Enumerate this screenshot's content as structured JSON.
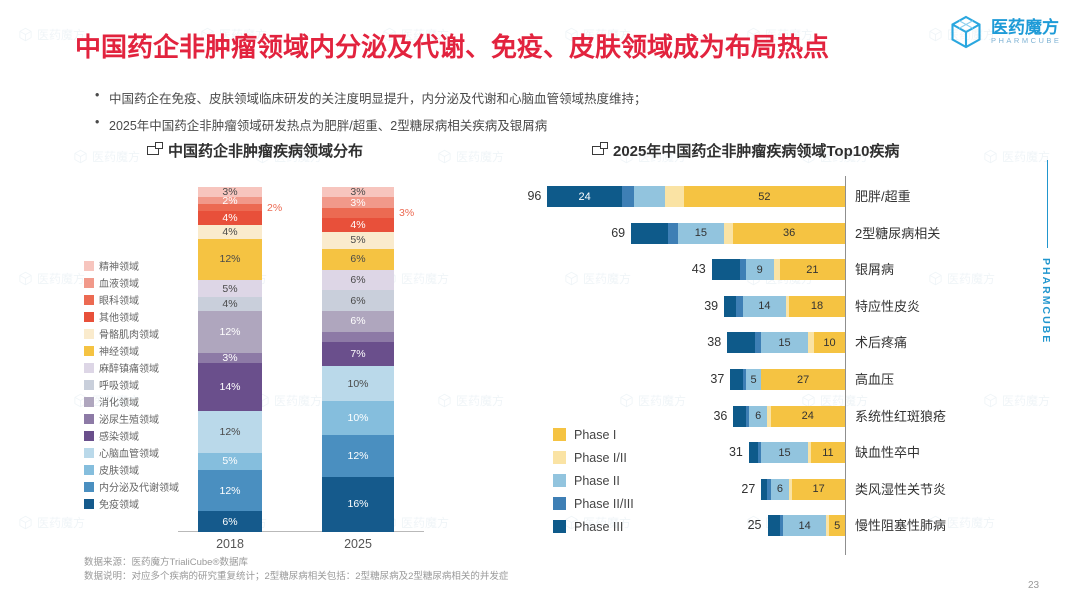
{
  "page": {
    "title": "中国药企非肿瘤领域内分泌及代谢、免疫、皮肤领域成为布局热点",
    "bullets": [
      "中国药企在免疫、皮肤领域临床研发的关注度明显提升，内分泌及代谢和心脑血管领域热度维持；",
      "2025年中国药企非肿瘤领域研发热点为肥胖/超重、2型糖尿病相关疾病及银屑病"
    ],
    "logo": {
      "name": "医药魔方",
      "subtitle": "PHARMCUBE"
    },
    "side_label": "PHARMCUBE",
    "watermark_text": "医药魔方",
    "footer": {
      "source": "数据来源：医药魔方TrialiCube®数据库",
      "note": "数据说明：对应多个疾病的研究重复统计；2型糖尿病相关包括：2型糖尿病及2型糖尿病相关的并发症"
    },
    "page_number": "23",
    "accent_color": "#E2233E"
  },
  "chart_data": [
    {
      "type": "bar",
      "variant": "stacked-column",
      "title": "中国药企非肿瘤疾病领域分布",
      "categories": [
        "2018",
        "2025"
      ],
      "value_unit": "%",
      "ylim": [
        0,
        100
      ],
      "series": [
        {
          "name": "精神领域",
          "color": "#F7C5BE",
          "values": [
            3,
            3
          ],
          "labels": [
            "3%",
            "3%"
          ]
        },
        {
          "name": "血液领域",
          "color": "#F1998A",
          "values": [
            2,
            3
          ],
          "labels": [
            "2%",
            "3%"
          ]
        },
        {
          "name": "眼科领域",
          "color": "#EC6A52",
          "values": [
            2,
            3
          ],
          "labels": [
            "2%",
            "3%"
          ],
          "callout": true
        },
        {
          "name": "其他领域",
          "color": "#E8503A",
          "values": [
            4,
            4
          ],
          "labels": [
            "4%",
            "4%"
          ]
        },
        {
          "name": "骨骼肌肉领域",
          "color": "#FAEBCD",
          "values": [
            4,
            5
          ],
          "labels": [
            "4%",
            "5%"
          ]
        },
        {
          "name": "神经领域",
          "color": "#F5C342",
          "values": [
            12,
            6
          ],
          "labels": [
            "12%",
            "6%"
          ]
        },
        {
          "name": "麻醉镇痛领域",
          "color": "#DDD6E6",
          "values": [
            5,
            6
          ],
          "labels": [
            "5%",
            "6%"
          ]
        },
        {
          "name": "呼吸领域",
          "color": "#C9CFDB",
          "values": [
            4,
            6
          ],
          "labels": [
            "4%",
            "6%"
          ]
        },
        {
          "name": "消化领域",
          "color": "#AFA6BE",
          "values": [
            12,
            6
          ],
          "labels": [
            "12%",
            "6%"
          ]
        },
        {
          "name": "泌尿生殖领域",
          "color": "#8D7AA6",
          "values": [
            3,
            3
          ],
          "labels": [
            "3%",
            ""
          ]
        },
        {
          "name": "感染领域",
          "color": "#6A4F8C",
          "values": [
            14,
            7
          ],
          "labels": [
            "14%",
            "7%"
          ]
        },
        {
          "name": "心脑血管领域",
          "color": "#BAD9EA",
          "values": [
            12,
            10
          ],
          "labels": [
            "12%",
            "10%"
          ]
        },
        {
          "name": "皮肤领域",
          "color": "#85BEDD",
          "values": [
            5,
            10
          ],
          "labels": [
            "5%",
            "10%"
          ]
        },
        {
          "name": "内分泌及代谢领域",
          "color": "#4A8FC0",
          "values": [
            12,
            12
          ],
          "labels": [
            "12%",
            "12%"
          ]
        },
        {
          "name": "免疫领域",
          "color": "#155A8C",
          "values": [
            6,
            16
          ],
          "labels": [
            "6%",
            "16%"
          ]
        }
      ]
    },
    {
      "type": "bar",
      "variant": "stacked-horizontal",
      "title": "2025年中国药企非肿瘤疾病领域Top10疾病",
      "legend_position": "bottom-left",
      "phases": [
        {
          "name": "Phase I",
          "color": "#F5C342"
        },
        {
          "name": "Phase I/II",
          "color": "#FAE3A4"
        },
        {
          "name": "Phase II",
          "color": "#92C4DE"
        },
        {
          "name": "Phase II/III",
          "color": "#3E7FB5"
        },
        {
          "name": "Phase III",
          "color": "#0E5A8A"
        }
      ],
      "rows": [
        {
          "disease": "肥胖/超重",
          "total": 96,
          "segments": [
            {
              "phase": "Phase III",
              "value": 24,
              "label": "24"
            },
            {
              "phase": "Phase II/III",
              "value": 4,
              "label": ""
            },
            {
              "phase": "Phase II",
              "value": 10,
              "label": ""
            },
            {
              "phase": "Phase I/II",
              "value": 6,
              "label": ""
            },
            {
              "phase": "Phase I",
              "value": 52,
              "label": "52"
            }
          ]
        },
        {
          "disease": "2型糖尿病相关",
          "total": 69,
          "segments": [
            {
              "phase": "Phase III",
              "value": 12,
              "label": ""
            },
            {
              "phase": "Phase II/III",
              "value": 3,
              "label": ""
            },
            {
              "phase": "Phase II",
              "value": 15,
              "label": "15"
            },
            {
              "phase": "Phase I/II",
              "value": 3,
              "label": ""
            },
            {
              "phase": "Phase I",
              "value": 36,
              "label": "36"
            }
          ]
        },
        {
          "disease": "银屑病",
          "total": 43,
          "segments": [
            {
              "phase": "Phase III",
              "value": 9,
              "label": ""
            },
            {
              "phase": "Phase II/III",
              "value": 2,
              "label": ""
            },
            {
              "phase": "Phase II",
              "value": 9,
              "label": "9"
            },
            {
              "phase": "Phase I/II",
              "value": 2,
              "label": ""
            },
            {
              "phase": "Phase I",
              "value": 21,
              "label": "21"
            }
          ]
        },
        {
          "disease": "特应性皮炎",
          "total": 39,
          "segments": [
            {
              "phase": "Phase III",
              "value": 4,
              "label": ""
            },
            {
              "phase": "Phase II/III",
              "value": 2,
              "label": ""
            },
            {
              "phase": "Phase II",
              "value": 14,
              "label": "14"
            },
            {
              "phase": "Phase I/II",
              "value": 1,
              "label": ""
            },
            {
              "phase": "Phase I",
              "value": 18,
              "label": "18"
            }
          ]
        },
        {
          "disease": "术后疼痛",
          "total": 38,
          "segments": [
            {
              "phase": "Phase III",
              "value": 9,
              "label": ""
            },
            {
              "phase": "Phase II/III",
              "value": 2,
              "label": ""
            },
            {
              "phase": "Phase II",
              "value": 15,
              "label": "15"
            },
            {
              "phase": "Phase I/II",
              "value": 2,
              "label": ""
            },
            {
              "phase": "Phase I",
              "value": 10,
              "label": "10"
            }
          ]
        },
        {
          "disease": "高血压",
          "total": 37,
          "segments": [
            {
              "phase": "Phase III",
              "value": 4,
              "label": ""
            },
            {
              "phase": "Phase II/III",
              "value": 1,
              "label": ""
            },
            {
              "phase": "Phase II",
              "value": 5,
              "label": "5"
            },
            {
              "phase": "Phase I/II",
              "value": 0,
              "label": ""
            },
            {
              "phase": "Phase I",
              "value": 27,
              "label": "27"
            }
          ]
        },
        {
          "disease": "系统性红斑狼疮",
          "total": 36,
          "segments": [
            {
              "phase": "Phase III",
              "value": 4,
              "label": ""
            },
            {
              "phase": "Phase II/III",
              "value": 1,
              "label": ""
            },
            {
              "phase": "Phase II",
              "value": 6,
              "label": "6"
            },
            {
              "phase": "Phase I/II",
              "value": 1,
              "label": ""
            },
            {
              "phase": "Phase I",
              "value": 24,
              "label": "24"
            }
          ]
        },
        {
          "disease": "缺血性卒中",
          "total": 31,
          "segments": [
            {
              "phase": "Phase III",
              "value": 3,
              "label": ""
            },
            {
              "phase": "Phase II/III",
              "value": 1,
              "label": ""
            },
            {
              "phase": "Phase II",
              "value": 15,
              "label": "15"
            },
            {
              "phase": "Phase I/II",
              "value": 1,
              "label": ""
            },
            {
              "phase": "Phase I",
              "value": 11,
              "label": "11"
            }
          ]
        },
        {
          "disease": "类风湿性关节炎",
          "total": 27,
          "segments": [
            {
              "phase": "Phase III",
              "value": 2,
              "label": ""
            },
            {
              "phase": "Phase II/III",
              "value": 1,
              "label": ""
            },
            {
              "phase": "Phase II",
              "value": 6,
              "label": "6"
            },
            {
              "phase": "Phase I/II",
              "value": 1,
              "label": ""
            },
            {
              "phase": "Phase I",
              "value": 17,
              "label": "17"
            }
          ]
        },
        {
          "disease": "慢性阻塞性肺病",
          "total": 25,
          "segments": [
            {
              "phase": "Phase III",
              "value": 4,
              "label": ""
            },
            {
              "phase": "Phase II/III",
              "value": 1,
              "label": ""
            },
            {
              "phase": "Phase II",
              "value": 14,
              "label": "14"
            },
            {
              "phase": "Phase I/II",
              "value": 1,
              "label": ""
            },
            {
              "phase": "Phase I",
              "value": 5,
              "label": "5"
            }
          ]
        }
      ]
    }
  ]
}
